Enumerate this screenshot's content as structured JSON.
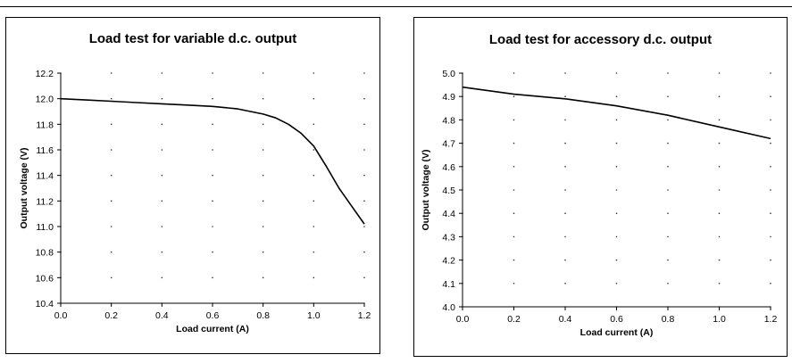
{
  "chart_data": [
    {
      "type": "line",
      "title": "Load test for variable d.c. output",
      "xlabel": "Load current (A)",
      "ylabel": "Output voltage (V)",
      "xlim": [
        0.0,
        1.2
      ],
      "ylim": [
        10.4,
        12.2
      ],
      "x_ticks": [
        "0.0",
        "0.2",
        "0.4",
        "0.6",
        "0.8",
        "1.0",
        "1.2"
      ],
      "y_ticks": [
        "10.4",
        "10.6",
        "10.8",
        "11.0",
        "11.2",
        "11.4",
        "11.6",
        "11.8",
        "12.0",
        "12.2"
      ],
      "grid": "dotted",
      "series": [
        {
          "x": [
            0.0,
            0.1,
            0.2,
            0.3,
            0.4,
            0.5,
            0.6,
            0.7,
            0.75,
            0.8,
            0.85,
            0.9,
            0.95,
            1.0,
            1.05,
            1.1,
            1.15,
            1.2
          ],
          "y": [
            12.0,
            11.99,
            11.98,
            11.97,
            11.96,
            11.95,
            11.94,
            11.92,
            11.9,
            11.88,
            11.85,
            11.8,
            11.73,
            11.63,
            11.47,
            11.3,
            11.16,
            11.02
          ]
        }
      ]
    },
    {
      "type": "line",
      "title": "Load test for accessory d.c. output",
      "xlabel": "Load current (A)",
      "ylabel": "Output voltage (V)",
      "xlim": [
        0.0,
        1.2
      ],
      "ylim": [
        4.0,
        5.0
      ],
      "x_ticks": [
        "0.0",
        "0.2",
        "0.4",
        "0.6",
        "0.8",
        "1.0",
        "1.2"
      ],
      "y_ticks": [
        "4.0",
        "4.1",
        "4.2",
        "4.3",
        "4.4",
        "4.5",
        "4.6",
        "4.7",
        "4.8",
        "4.9",
        "5.0"
      ],
      "grid": "dotted",
      "series": [
        {
          "x": [
            0.0,
            0.2,
            0.4,
            0.6,
            0.8,
            1.0,
            1.2
          ],
          "y": [
            4.94,
            4.91,
            4.89,
            4.86,
            4.82,
            4.77,
            4.72
          ]
        }
      ]
    }
  ]
}
